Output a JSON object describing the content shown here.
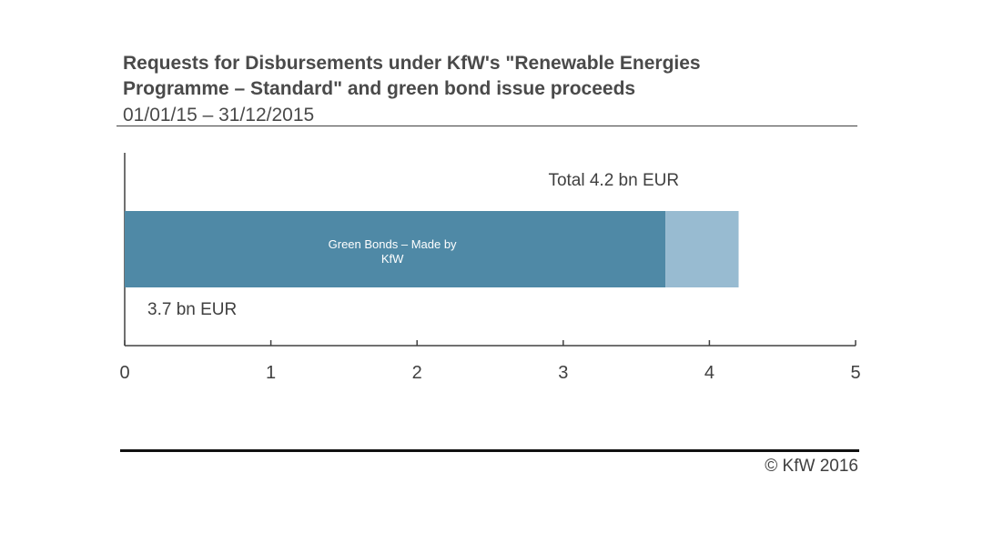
{
  "header": {
    "title_line1": "Requests for Disbursements under KfW's \"Renewable Energies",
    "title_line2": "Programme – Standard\" and green bond issue proceeds",
    "subtitle": "01/01/15 – 31/12/2015"
  },
  "footer": {
    "copyright": "© KfW 2016"
  },
  "chart_data": {
    "type": "bar",
    "orientation": "horizontal",
    "stacked": true,
    "title": "Requests for Disbursements under KfW's \"Renewable Energies Programme – Standard\" and green bond issue proceeds",
    "subtitle": "01/01/15 – 31/12/2015",
    "xlim": [
      0,
      5
    ],
    "xticks": [
      0,
      1,
      2,
      3,
      4,
      5
    ],
    "xtick_labels": [
      "0",
      "1",
      "2",
      "3",
      "4",
      "5"
    ],
    "grid": false,
    "series": [
      {
        "name": "Green Bonds – Made by KfW",
        "value": 3.7,
        "color": "#4f89a6",
        "label_line1": "Green Bonds – Made by",
        "label_line2": "KfW"
      },
      {
        "name": "",
        "value": 0.5,
        "color": "#98bbd1"
      }
    ],
    "annotations": {
      "total": "Total 4.2 bn EUR",
      "green_bonds_value": "3.7 bn EUR"
    }
  }
}
